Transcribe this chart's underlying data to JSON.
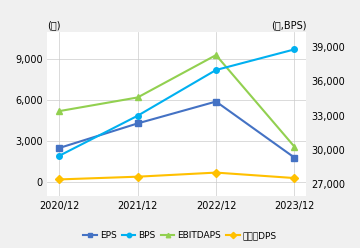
{
  "years": [
    "2020/12",
    "2021/12",
    "2022/12",
    "2023/12"
  ],
  "EPS": [
    2500,
    4300,
    5900,
    1800
  ],
  "BPS": [
    29500,
    33000,
    37000,
    38800
  ],
  "EBITDAPS": [
    5200,
    6200,
    9300,
    2600
  ],
  "DPS": [
    200,
    400,
    700,
    300
  ],
  "left_ylim": [
    -1000,
    11000
  ],
  "left_yticks": [
    0,
    3000,
    6000,
    9000
  ],
  "right_ylim": [
    26000,
    40333
  ],
  "right_yticks": [
    27000,
    30000,
    33000,
    36000,
    39000
  ],
  "ylabel_left": "(원)",
  "ylabel_right": "(원,BPS)",
  "colors": {
    "EPS": "#4472C4",
    "BPS": "#00B0F0",
    "EBITDAPS": "#92D050",
    "DPS": "#FFC000"
  },
  "markers": {
    "EPS": "s",
    "BPS": "o",
    "EBITDAPS": "^",
    "DPS": "D"
  },
  "legend_labels": [
    "EPS",
    "BPS",
    "EBITDAPS",
    "보통주DPS"
  ],
  "bg_color": "#f0f0f0",
  "plot_bg": "#ffffff"
}
